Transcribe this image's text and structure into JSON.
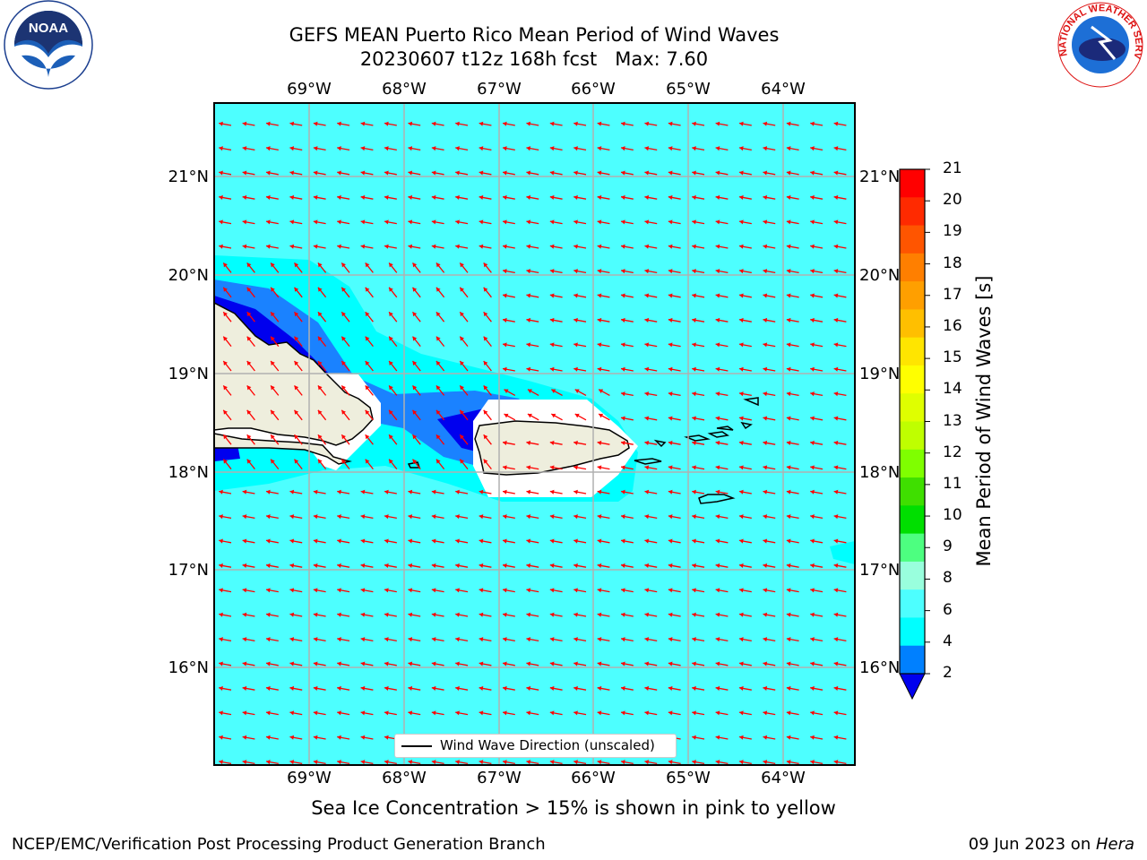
{
  "title": {
    "line1": "GEFS MEAN Puerto Rico Mean Period of Wind Waves",
    "line2": "20230607 t12z 168h fcst   Max: 7.60"
  },
  "map": {
    "lon_labels": [
      "69°W",
      "68°W",
      "67°W",
      "66°W",
      "65°W",
      "64°W"
    ],
    "lat_labels": [
      "21°N",
      "20°N",
      "19°N",
      "18°N",
      "17°N",
      "16°N"
    ],
    "legend_label": "Wind Wave Direction (unscaled)",
    "background_color": "#4dffff",
    "arrow_color": "#ff0000",
    "land_color": "#eeeedd",
    "ice_note": "Sea Ice Concentration > 15% is shown in pink to yellow"
  },
  "colorbar": {
    "title": "Mean Period of Wind Waves [s]",
    "ticks": [
      "21",
      "20",
      "19",
      "18",
      "17",
      "16",
      "15",
      "14",
      "13",
      "12",
      "11",
      "10",
      "9",
      "8",
      "6",
      "4",
      "2"
    ],
    "colors": [
      "#ff0000",
      "#ff2a00",
      "#ff5500",
      "#ff7f00",
      "#ff9f00",
      "#ffbf00",
      "#ffe500",
      "#ffff00",
      "#dfff00",
      "#bfff00",
      "#7fff00",
      "#3fdf00",
      "#00df00",
      "#4dff80",
      "#99ffdd",
      "#4dffff",
      "#00ffff",
      "#0080ff",
      "#0000ee"
    ]
  },
  "footer": {
    "left": "NCEP/EMC/Verification Post Processing Product Generation Branch",
    "right_date": "09 Jun 2023 on ",
    "right_host": "Hera"
  },
  "logos": {
    "noaa_text": "NOAA",
    "nws_ring_text": "NATIONAL WEATHER SERVICE"
  }
}
